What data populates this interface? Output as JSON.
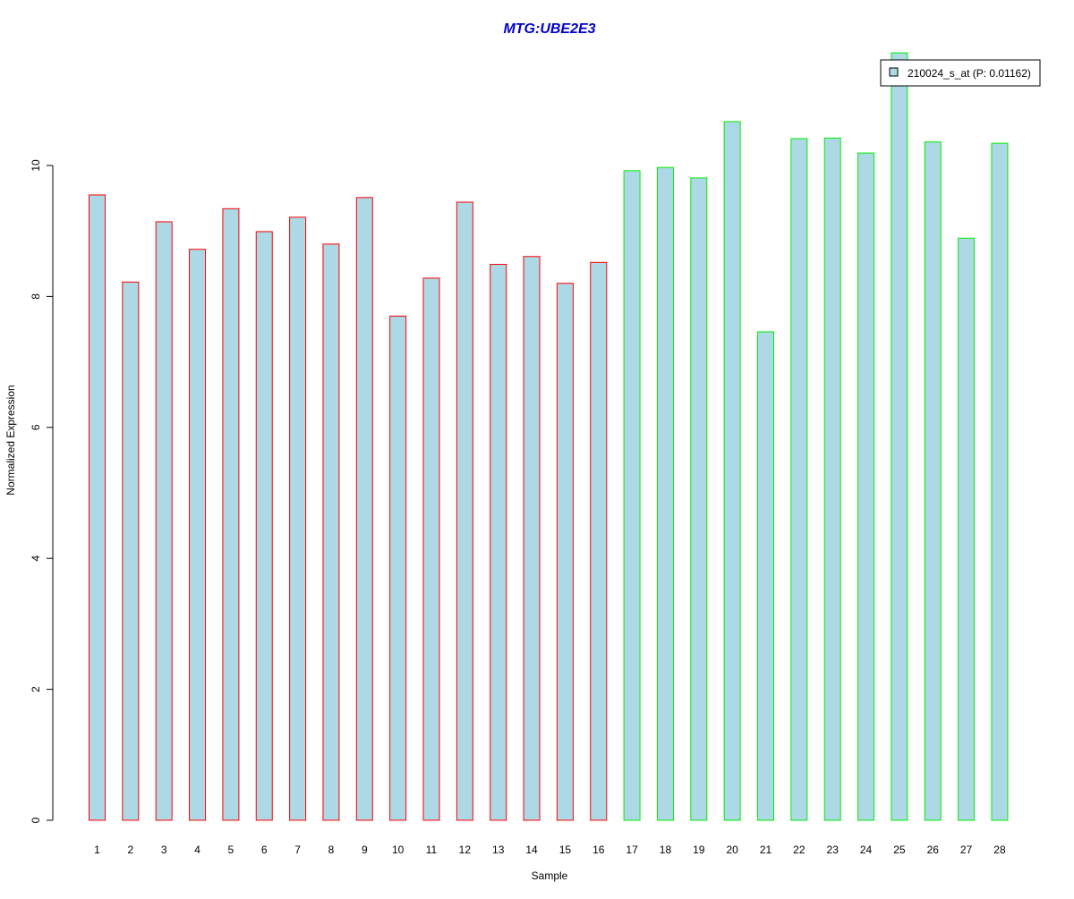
{
  "chart_data": {
    "type": "bar",
    "title": "MTG:UBE2E3",
    "xlabel": "Sample",
    "ylabel": "Normalized Expression",
    "categories": [
      "1",
      "2",
      "3",
      "4",
      "5",
      "6",
      "7",
      "8",
      "9",
      "10",
      "11",
      "12",
      "13",
      "14",
      "15",
      "16",
      "17",
      "18",
      "19",
      "20",
      "21",
      "22",
      "23",
      "24",
      "25",
      "26",
      "27",
      "28"
    ],
    "series": [
      {
        "name": "210024_s_at (P: 0.01162)",
        "values": [
          9.55,
          8.22,
          9.14,
          8.72,
          9.34,
          8.99,
          9.21,
          8.8,
          9.51,
          7.7,
          8.28,
          9.44,
          8.49,
          8.61,
          8.2,
          8.52,
          9.92,
          9.97,
          9.81,
          10.67,
          7.46,
          10.41,
          10.42,
          10.19,
          11.72,
          10.36,
          8.89,
          10.34
        ]
      }
    ],
    "yticks": [
      0,
      2,
      4,
      6,
      8,
      10
    ],
    "ylim": [
      0,
      11.72
    ],
    "legend_position": "top-right",
    "grid": false,
    "colors": {
      "title": "#0000cc",
      "bar_fill": "#add8e6",
      "group1_border": "#ff0000",
      "group2_border": "#00ee00",
      "axis": "#000000"
    },
    "group_boundary_after_sample": 16
  }
}
